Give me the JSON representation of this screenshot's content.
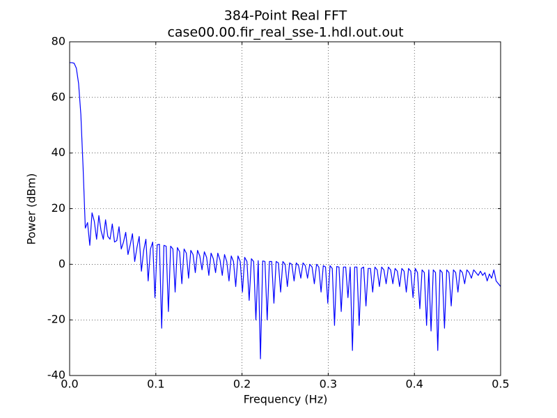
{
  "chart_data": {
    "type": "line",
    "title": "384-Point Real FFT",
    "subtitle": "case00.00.fir_real_sse-1.hdl.out.out",
    "xlabel": "Frequency (Hz)",
    "ylabel": "Power (dBm)",
    "xlim": [
      0,
      0.5
    ],
    "ylim": [
      -40,
      80
    ],
    "xticks": [
      {
        "value": 0,
        "label": "0.0"
      },
      0.1,
      0.2,
      0.3,
      0.4,
      0.5
    ],
    "yticks": [
      -40,
      -20,
      0,
      20,
      40,
      60,
      80
    ],
    "grid": true,
    "x": [
      0,
      0.0026,
      0.0052,
      0.0078,
      0.0104,
      0.013,
      0.0156,
      0.0182,
      0.0208,
      0.0234,
      0.026,
      0.0286,
      0.0313,
      0.0339,
      0.0365,
      0.0391,
      0.0417,
      0.0443,
      0.0469,
      0.0495,
      0.0521,
      0.0547,
      0.0573,
      0.0599,
      0.0625,
      0.0651,
      0.0677,
      0.0703,
      0.0729,
      0.0755,
      0.0781,
      0.0807,
      0.0833,
      0.0859,
      0.0885,
      0.0911,
      0.0938,
      0.0964,
      0.099,
      0.1016,
      0.1042,
      0.1068,
      0.1094,
      0.112,
      0.1146,
      0.1172,
      0.1198,
      0.1224,
      0.125,
      0.1276,
      0.1302,
      0.1328,
      0.1354,
      0.138,
      0.1406,
      0.1432,
      0.1458,
      0.1484,
      0.151,
      0.1536,
      0.1563,
      0.1589,
      0.1615,
      0.1641,
      0.1667,
      0.1693,
      0.1719,
      0.1745,
      0.1771,
      0.1797,
      0.1823,
      0.1849,
      0.1875,
      0.1901,
      0.1927,
      0.1953,
      0.1979,
      0.2005,
      0.2031,
      0.2057,
      0.2083,
      0.2109,
      0.2135,
      0.2161,
      0.2188,
      0.2214,
      0.224,
      0.2266,
      0.2292,
      0.2318,
      0.2344,
      0.237,
      0.2396,
      0.2422,
      0.2448,
      0.2474,
      0.25,
      0.2526,
      0.2552,
      0.2578,
      0.2604,
      0.263,
      0.2656,
      0.2682,
      0.2708,
      0.2734,
      0.276,
      0.2786,
      0.2813,
      0.2839,
      0.2865,
      0.2891,
      0.2917,
      0.2943,
      0.2969,
      0.2995,
      0.3021,
      0.3047,
      0.3073,
      0.3099,
      0.3125,
      0.3151,
      0.3177,
      0.3203,
      0.3229,
      0.3255,
      0.3281,
      0.3307,
      0.3333,
      0.3359,
      0.3385,
      0.3411,
      0.3438,
      0.3464,
      0.349,
      0.3516,
      0.3542,
      0.3568,
      0.3594,
      0.362,
      0.3646,
      0.3672,
      0.3698,
      0.3724,
      0.375,
      0.3776,
      0.3802,
      0.3828,
      0.3854,
      0.388,
      0.3906,
      0.3932,
      0.3958,
      0.3984,
      0.401,
      0.4036,
      0.4063,
      0.4089,
      0.4115,
      0.4141,
      0.4167,
      0.4193,
      0.4219,
      0.4245,
      0.4271,
      0.4297,
      0.4323,
      0.4349,
      0.4375,
      0.4401,
      0.4427,
      0.4453,
      0.4479,
      0.4505,
      0.4531,
      0.4557,
      0.4583,
      0.4609,
      0.4635,
      0.4661,
      0.4688,
      0.4714,
      0.474,
      0.4766,
      0.4792,
      0.4818,
      0.4844,
      0.487,
      0.4896,
      0.4922,
      0.4948,
      0.4974,
      0.5
    ],
    "series": [
      {
        "name": "Power",
        "color": "#0000ff",
        "values": [
          72.5,
          72.5,
          72.3,
          70.5,
          65,
          54,
          35,
          13,
          15,
          6.8,
          18.5,
          15.5,
          9,
          17.5,
          12,
          9,
          16,
          10,
          9,
          14.5,
          8,
          8.5,
          13.5,
          5.5,
          8,
          11.5,
          3.5,
          7,
          11,
          1,
          6,
          10,
          -2.5,
          5,
          9,
          -6,
          5.5,
          8,
          -12,
          7,
          7.2,
          -23,
          6.8,
          6.5,
          -17,
          6.5,
          5.5,
          -10,
          6,
          4.5,
          -7,
          5.5,
          4,
          -5,
          5,
          3.5,
          -3,
          5,
          3,
          -2,
          4.5,
          2.5,
          -4,
          4,
          2,
          -3,
          4,
          1.5,
          -4,
          3.5,
          1,
          -6,
          3,
          1,
          -8,
          3,
          1,
          -10,
          2.5,
          1,
          -13,
          2,
          1,
          -20,
          1.3,
          -34,
          1.2,
          1,
          -20,
          1,
          1,
          -14,
          1,
          0.5,
          -10,
          1,
          0,
          -8,
          0.5,
          0,
          -6,
          0.5,
          -0.5,
          -5,
          0.5,
          -0.5,
          -5,
          0,
          -1,
          -7,
          0,
          -1,
          -10,
          -0.5,
          -1,
          -14,
          -0.5,
          -1.5,
          -22,
          -0.8,
          -1,
          -17,
          -1,
          -1,
          -12,
          -1,
          -31,
          -1,
          -1,
          -22,
          -1.5,
          -1,
          -15,
          -1.5,
          -1.5,
          -10,
          -1,
          -2,
          -8,
          -1,
          -2,
          -7,
          -1,
          -2,
          -7,
          -1.5,
          -2.5,
          -8,
          -1.5,
          -2.5,
          -10,
          -1.5,
          -2.5,
          -12,
          -1.5,
          -3,
          -16,
          -2,
          -3,
          -22,
          -2,
          -24,
          -2,
          -3,
          -31,
          -2,
          -3,
          -23,
          -2,
          -3,
          -15,
          -2,
          -3,
          -10,
          -2,
          -3,
          -7,
          -2,
          -3,
          -5,
          -2,
          -3,
          -4,
          -2.5,
          -4,
          -3,
          -6,
          -3.5,
          -5,
          -2,
          -6,
          -7,
          -8
        ]
      }
    ]
  }
}
